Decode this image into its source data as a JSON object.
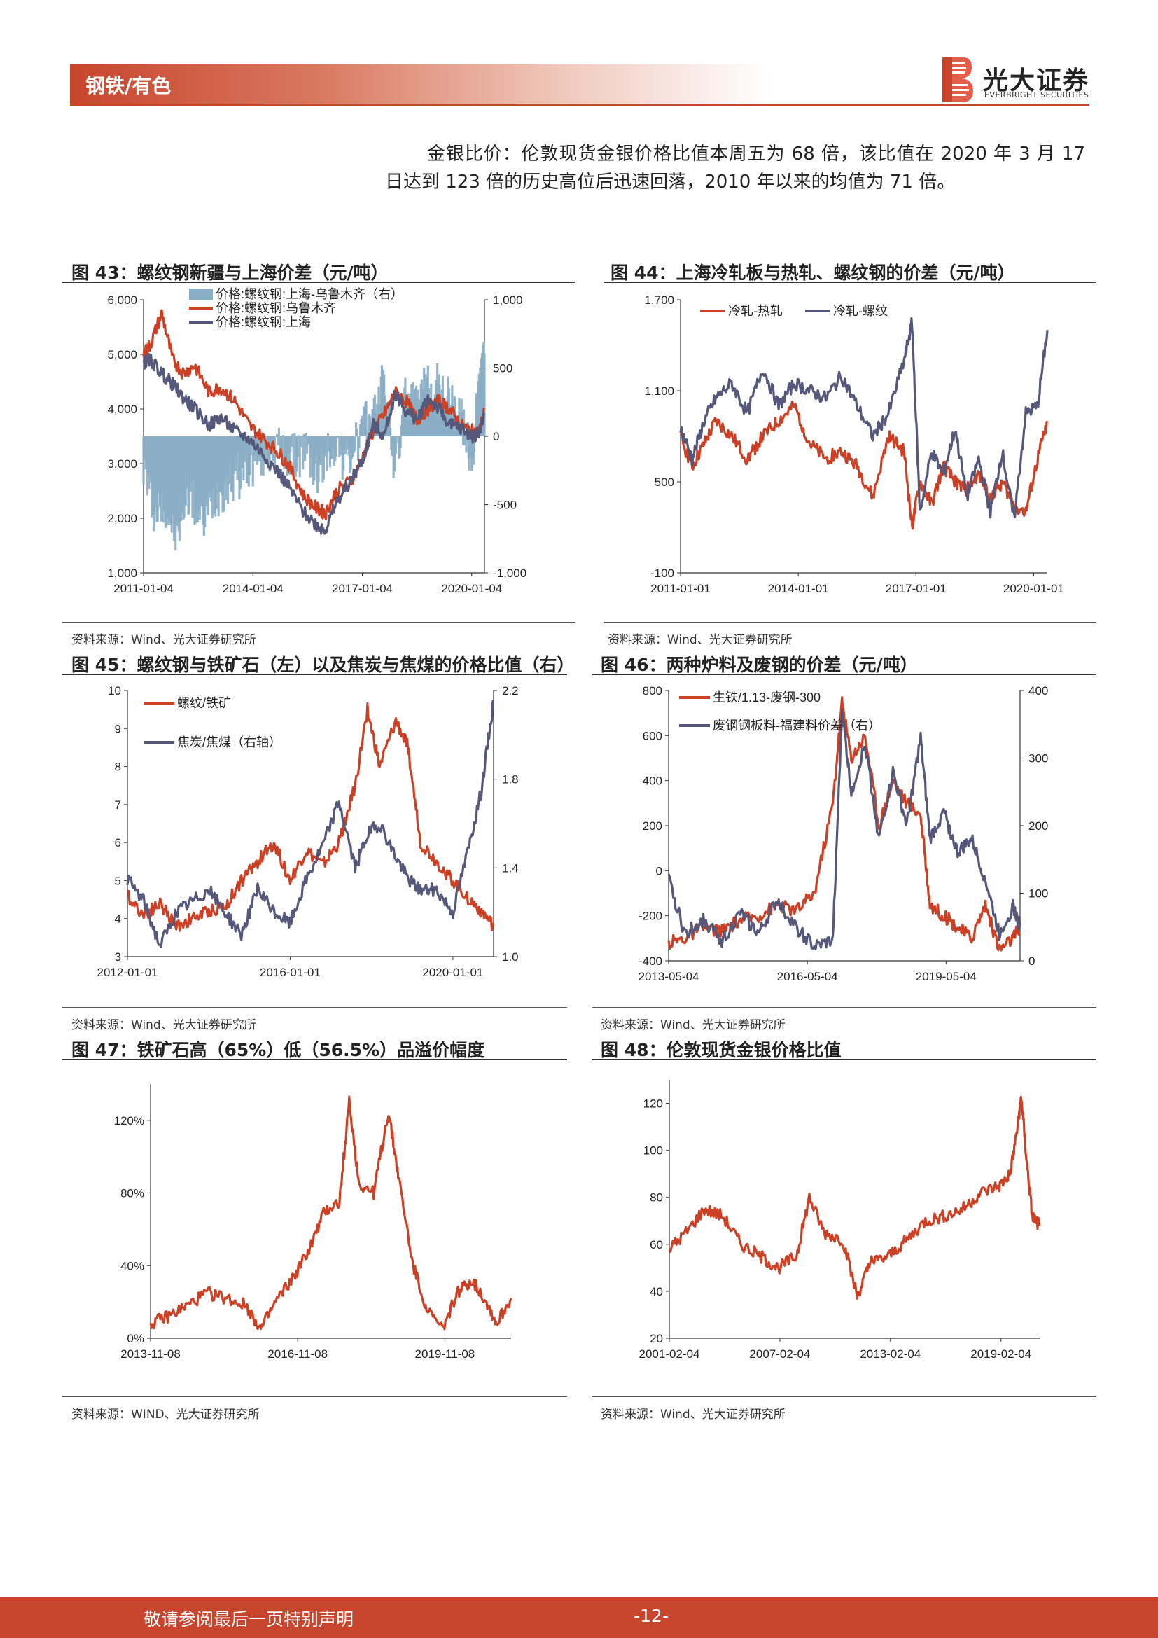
{
  "header": {
    "sector": "钢铁/有色",
    "logo_cn": "光大证券",
    "logo_en": "EVERBRIGHT SECURITIES",
    "accent_color": "#c8452d"
  },
  "paragraph": "金银比价：伦敦现货金银价格比值本周五为 68 倍，该比值在 2020 年 3 月 17 日达到 123 倍的历史高位后迅速回落，2010 年以来的均值为 71 倍。",
  "footer": {
    "note": "敬请参阅最后一页特别声明",
    "page": "-12-"
  },
  "charts": [
    {
      "title": "图 43：螺纹钢新疆与上海价差（元/吨）",
      "source": "资料来源：Wind、光大证券研究所"
    },
    {
      "title": "图 44：上海冷轧板与热轧、螺纹钢的价差（元/吨）",
      "source": "资料来源：Wind、光大证券研究所"
    },
    {
      "title": "图 45：螺纹钢与铁矿石（左）以及焦炭与焦煤的价格比值（右）",
      "source": "资料来源：Wind、光大证券研究所"
    },
    {
      "title": "图 46：两种炉料及废钢的价差（元/吨）",
      "source": "资料来源：Wind、光大证券研究所"
    },
    {
      "title": "图 47：铁矿石高（65%）低（56.5%）品溢价幅度",
      "source": "资料来源：WIND、光大证券研究所"
    },
    {
      "title": "图 48：伦敦现货金银价格比值",
      "source": "资料来源：Wind、光大证券研究所"
    }
  ],
  "chart_data": [
    {
      "type": "line",
      "xlabels": [
        "2011-01-04",
        "2014-01-04",
        "2017-01-04",
        "2020-01-04"
      ],
      "xrange": [
        2011.0,
        2020.35
      ],
      "ylim": [
        1000,
        6000
      ],
      "yticks": [
        "1,000",
        "2,000",
        "3,000",
        "4,000",
        "5,000",
        "6,000"
      ],
      "y2lim": [
        -1000,
        1000
      ],
      "y2ticks": [
        "-1,000",
        "-500",
        "0",
        "500",
        "1,000"
      ],
      "legend_position": "top-left",
      "series": [
        {
          "name": "价格:螺纹钢:上海-乌鲁木齐（右）",
          "axis": "right",
          "style": "area",
          "color": "#8aaec5",
          "x": [
            2011.0,
            2011.3,
            2011.6,
            2011.9,
            2012.2,
            2012.6,
            2013.0,
            2013.4,
            2013.8,
            2014.2,
            2014.6,
            2015.0,
            2015.4,
            2015.8,
            2016.2,
            2016.6,
            2017.0,
            2017.3,
            2017.6,
            2017.9,
            2018.2,
            2018.5,
            2018.8,
            2019.1,
            2019.4,
            2019.7,
            2020.0,
            2020.2,
            2020.35
          ],
          "y": [
            -200,
            -550,
            -480,
            -750,
            -380,
            -650,
            -420,
            -330,
            -250,
            -150,
            -80,
            -180,
            -100,
            -300,
            -50,
            -200,
            50,
            150,
            400,
            -250,
            300,
            200,
            400,
            350,
            250,
            150,
            -200,
            350,
            600
          ]
        },
        {
          "name": "价格:螺纹钢:乌鲁木齐",
          "axis": "left",
          "color": "#cc4125",
          "x": [
            2011.0,
            2011.2,
            2011.5,
            2011.8,
            2012.1,
            2012.4,
            2012.8,
            2013.1,
            2013.5,
            2013.9,
            2014.3,
            2014.7,
            2015.0,
            2015.4,
            2015.8,
            2016.0,
            2016.3,
            2016.7,
            2017.0,
            2017.3,
            2017.6,
            2017.9,
            2018.2,
            2018.5,
            2018.8,
            2019.1,
            2019.4,
            2019.7,
            2020.0,
            2020.2,
            2020.35
          ],
          "y": [
            5000,
            5200,
            5750,
            4900,
            4650,
            4800,
            4300,
            4400,
            4150,
            3700,
            3450,
            3200,
            2950,
            2400,
            2150,
            2100,
            2500,
            2700,
            3100,
            3600,
            3900,
            4300,
            4150,
            3800,
            4000,
            4150,
            4000,
            3700,
            3600,
            3550,
            4000
          ]
        },
        {
          "name": "价格:螺纹钢:上海",
          "axis": "left",
          "color": "#55587a",
          "x": [
            2011.0,
            2011.2,
            2011.5,
            2011.8,
            2012.1,
            2012.4,
            2012.8,
            2013.1,
            2013.5,
            2013.9,
            2014.3,
            2014.7,
            2015.0,
            2015.4,
            2015.8,
            2016.0,
            2016.3,
            2016.7,
            2017.0,
            2017.3,
            2017.6,
            2017.9,
            2018.2,
            2018.5,
            2018.8,
            2019.1,
            2019.4,
            2019.7,
            2020.0,
            2020.2,
            2020.35
          ],
          "y": [
            4850,
            4900,
            4650,
            4450,
            4200,
            4000,
            3700,
            3850,
            3600,
            3450,
            3150,
            2850,
            2550,
            2100,
            1850,
            1800,
            2300,
            2700,
            3050,
            3700,
            3500,
            4300,
            3950,
            3800,
            4200,
            4000,
            3700,
            3650,
            3500,
            3550,
            3900
          ]
        }
      ]
    },
    {
      "type": "line",
      "xlabels": [
        "2011-01-01",
        "2014-01-01",
        "2017-01-01",
        "2020-01-01"
      ],
      "xrange": [
        2011.0,
        2020.35
      ],
      "ylim": [
        -100,
        1700
      ],
      "yticks": [
        "-100",
        "500",
        "1,100",
        "1,700"
      ],
      "legend_position": "top-left",
      "series": [
        {
          "name": "冷轧-热轧",
          "color": "#cc4125",
          "x": [
            2011.0,
            2011.3,
            2011.6,
            2011.9,
            2012.3,
            2012.7,
            2013.1,
            2013.5,
            2013.9,
            2014.3,
            2014.7,
            2015.1,
            2015.5,
            2015.9,
            2016.3,
            2016.7,
            2016.9,
            2017.1,
            2017.4,
            2017.7,
            2018.0,
            2018.3,
            2018.6,
            2018.9,
            2019.2,
            2019.5,
            2019.8,
            2020.1,
            2020.35
          ],
          "y": [
            800,
            600,
            750,
            900,
            800,
            650,
            800,
            900,
            1000,
            750,
            650,
            700,
            600,
            400,
            800,
            700,
            200,
            500,
            350,
            600,
            500,
            450,
            550,
            400,
            500,
            350,
            300,
            650,
            900
          ]
        },
        {
          "name": "冷轧-螺纹",
          "color": "#55587a",
          "x": [
            2011.0,
            2011.3,
            2011.6,
            2011.9,
            2012.3,
            2012.7,
            2013.1,
            2013.5,
            2013.9,
            2014.3,
            2014.7,
            2015.1,
            2015.5,
            2015.9,
            2016.3,
            2016.7,
            2016.9,
            2017.1,
            2017.4,
            2017.7,
            2018.0,
            2018.3,
            2018.6,
            2018.9,
            2019.2,
            2019.5,
            2019.8,
            2020.1,
            2020.35
          ],
          "y": [
            850,
            650,
            900,
            1050,
            1150,
            950,
            1250,
            1000,
            1150,
            1100,
            1050,
            1200,
            1000,
            800,
            950,
            1300,
            1550,
            300,
            700,
            550,
            850,
            400,
            650,
            300,
            700,
            250,
            950,
            1000,
            1500
          ]
        }
      ]
    },
    {
      "type": "line",
      "xlabels": [
        "2012-01-01",
        "2016-01-01",
        "2020-01-01"
      ],
      "xrange": [
        2012.0,
        2021.0
      ],
      "ylim": [
        3,
        10
      ],
      "yticks": [
        "3",
        "4",
        "5",
        "6",
        "7",
        "8",
        "9",
        "10"
      ],
      "y2lim": [
        1.0,
        2.2
      ],
      "y2ticks": [
        "1.0",
        "1.4",
        "1.8",
        "2.2"
      ],
      "legend_position": "top-left",
      "series": [
        {
          "name": "螺纹/铁矿",
          "axis": "left",
          "color": "#cc4125",
          "x": [
            2012.0,
            2012.4,
            2012.8,
            2013.2,
            2013.6,
            2014.0,
            2014.4,
            2014.8,
            2015.2,
            2015.6,
            2016.0,
            2016.4,
            2016.8,
            2017.2,
            2017.6,
            2017.9,
            2018.2,
            2018.6,
            2018.9,
            2019.2,
            2019.6,
            2020.0,
            2020.4,
            2020.7,
            2021.0
          ],
          "y": [
            4.6,
            4.1,
            4.4,
            3.8,
            4.0,
            4.2,
            4.3,
            5.0,
            5.5,
            6.0,
            5.0,
            5.8,
            5.4,
            6.0,
            7.5,
            9.5,
            8.0,
            9.2,
            8.5,
            6.0,
            5.5,
            5.0,
            4.5,
            4.2,
            3.8
          ]
        },
        {
          "name": "焦炭/焦煤（右轴）",
          "axis": "right",
          "color": "#55587a",
          "x": [
            2012.0,
            2012.4,
            2012.8,
            2013.2,
            2013.6,
            2014.0,
            2014.4,
            2014.8,
            2015.2,
            2015.6,
            2016.0,
            2016.4,
            2016.8,
            2017.2,
            2017.6,
            2017.9,
            2018.2,
            2018.6,
            2018.9,
            2019.2,
            2019.6,
            2020.0,
            2020.4,
            2020.7,
            2021.0
          ],
          "y": [
            1.35,
            1.25,
            1.05,
            1.2,
            1.25,
            1.3,
            1.2,
            1.1,
            1.3,
            1.2,
            1.15,
            1.35,
            1.5,
            1.7,
            1.4,
            1.55,
            1.6,
            1.45,
            1.35,
            1.3,
            1.3,
            1.2,
            1.5,
            1.75,
            2.15
          ]
        }
      ]
    },
    {
      "type": "line",
      "xlabels": [
        "2013-05-04",
        "2016-05-04",
        "2019-05-04"
      ],
      "xrange": [
        2013.35,
        2020.95
      ],
      "ylim": [
        -400,
        800
      ],
      "yticks": [
        "-400",
        "-200",
        "0",
        "200",
        "400",
        "600",
        "800"
      ],
      "y2lim": [
        0,
        400
      ],
      "y2ticks": [
        "0",
        "100",
        "200",
        "300",
        "400"
      ],
      "legend_position": "top-left",
      "series": [
        {
          "name": "生铁/1.13-废钢-300",
          "axis": "left",
          "color": "#cc4125",
          "x": [
            2013.35,
            2013.7,
            2014.1,
            2014.5,
            2014.9,
            2015.3,
            2015.7,
            2016.1,
            2016.5,
            2016.9,
            2017.1,
            2017.3,
            2017.6,
            2017.9,
            2018.2,
            2018.5,
            2018.8,
            2019.0,
            2019.3,
            2019.6,
            2019.9,
            2020.2,
            2020.5,
            2020.8,
            2020.95
          ],
          "y": [
            -320,
            -300,
            -250,
            -270,
            -220,
            -200,
            -150,
            -180,
            -100,
            300,
            750,
            500,
            600,
            200,
            400,
            300,
            250,
            -150,
            -200,
            -250,
            -300,
            -150,
            -350,
            -300,
            -250
          ]
        },
        {
          "name": "废钢钢板料-福建料价差（右）",
          "axis": "right",
          "color": "#55587a",
          "x": [
            2013.35,
            2013.7,
            2014.1,
            2014.5,
            2014.9,
            2015.3,
            2015.7,
            2016.1,
            2016.5,
            2016.9,
            2017.1,
            2017.3,
            2017.6,
            2017.9,
            2018.2,
            2018.5,
            2018.8,
            2019.0,
            2019.3,
            2019.6,
            2019.9,
            2020.2,
            2020.5,
            2020.8,
            2020.95
          ],
          "y": [
            120,
            40,
            60,
            30,
            70,
            40,
            90,
            50,
            20,
            30,
            370,
            250,
            320,
            180,
            280,
            200,
            330,
            180,
            220,
            160,
            180,
            120,
            40,
            80,
            50
          ]
        }
      ]
    },
    {
      "type": "line",
      "xlabels": [
        "2013-11-08",
        "2016-11-08",
        "2019-11-08"
      ],
      "xrange": [
        2013.85,
        2021.2
      ],
      "ylim": [
        0,
        1.4
      ],
      "yticks": [
        "0%",
        "40%",
        "80%",
        "120%"
      ],
      "y_tick_values": [
        0,
        0.4,
        0.8,
        1.2
      ],
      "series": [
        {
          "name": "",
          "color": "#cc4125",
          "x": [
            2013.85,
            2014.2,
            2014.6,
            2015.0,
            2015.4,
            2015.8,
            2016.1,
            2016.4,
            2016.8,
            2017.1,
            2017.4,
            2017.7,
            2017.9,
            2018.1,
            2018.4,
            2018.7,
            2018.9,
            2019.2,
            2019.5,
            2019.8,
            2020.1,
            2020.4,
            2020.7,
            2020.9,
            2021.2
          ],
          "y": [
            0.08,
            0.12,
            0.18,
            0.25,
            0.22,
            0.18,
            0.05,
            0.2,
            0.35,
            0.5,
            0.7,
            0.75,
            1.3,
            0.85,
            0.8,
            1.25,
            0.9,
            0.4,
            0.15,
            0.05,
            0.25,
            0.32,
            0.2,
            0.08,
            0.22
          ]
        }
      ]
    },
    {
      "type": "line",
      "xlabels": [
        "2001-02-04",
        "2007-02-04",
        "2013-02-04",
        "2019-02-04"
      ],
      "xrange": [
        2001.1,
        2021.2
      ],
      "ylim": [
        20,
        130
      ],
      "yticks": [
        "20",
        "40",
        "60",
        "80",
        "100",
        "120"
      ],
      "y_tick_values": [
        20,
        40,
        60,
        80,
        100,
        120
      ],
      "series": [
        {
          "name": "",
          "color": "#cc4125",
          "x": [
            2001.1,
            2002.0,
            2003.0,
            2004.0,
            2005.0,
            2006.0,
            2007.0,
            2008.0,
            2008.7,
            2009.5,
            2010.5,
            2011.3,
            2012.0,
            2013.0,
            2014.0,
            2015.0,
            2016.0,
            2017.0,
            2018.0,
            2019.0,
            2019.6,
            2020.0,
            2020.2,
            2020.5,
            2020.8,
            2021.2
          ],
          "y": [
            58,
            65,
            75,
            72,
            60,
            55,
            50,
            55,
            80,
            65,
            62,
            38,
            52,
            55,
            62,
            70,
            72,
            75,
            82,
            85,
            90,
            110,
            123,
            95,
            72,
            68
          ]
        }
      ]
    }
  ]
}
